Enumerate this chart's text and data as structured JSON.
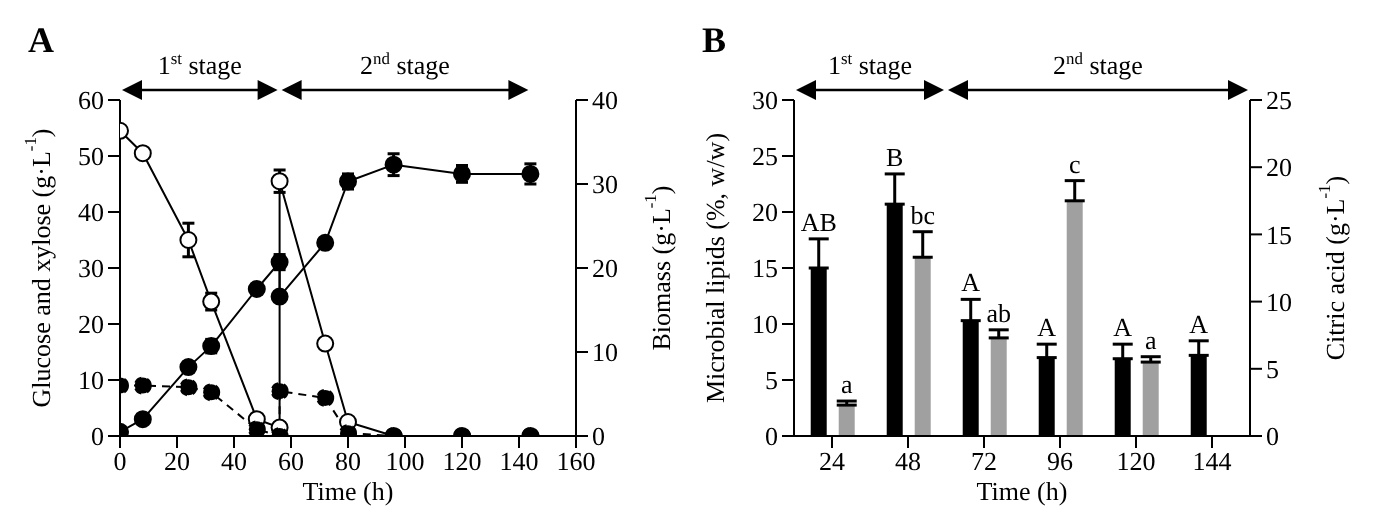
{
  "chart_data": [
    {
      "type": "line",
      "title": "A",
      "xlabel": "Time (h)",
      "ylabel": "Glucose and xylose (g·L$^{-1}$)",
      "y2label": "Biomass (g·L$^{-1}$)",
      "xlim": [
        0,
        160
      ],
      "xticks": [
        0,
        20,
        40,
        60,
        80,
        100,
        120,
        140,
        160
      ],
      "ylim": [
        0,
        60
      ],
      "yticks": [
        0,
        10,
        20,
        30,
        40,
        50,
        60
      ],
      "y2lim": [
        0,
        40
      ],
      "y2ticks": [
        0,
        10,
        20,
        30,
        40
      ],
      "marker": "circle",
      "legend": false,
      "annotations": [
        "1$^{st}$ stage",
        "2$^{nd}$ stage"
      ],
      "series": [
        {
          "color": "#ffffff",
          "line_style": "solid",
          "x": [
            0,
            8,
            24,
            32,
            48,
            56,
            56,
            72,
            80,
            96,
            120,
            144
          ],
          "values": [
            54.5,
            50.5,
            35,
            24,
            3,
            1.5,
            45.5,
            16.5,
            2.5,
            0,
            0,
            0
          ],
          "errors": [
            null,
            null,
            3,
            1.5,
            null,
            null,
            2,
            null,
            null,
            null,
            null,
            null
          ]
        },
        {
          "color": "#000000",
          "line_style": "dashed",
          "x": [
            0,
            8,
            24,
            32,
            48,
            56,
            56,
            72,
            80,
            96,
            120,
            144
          ],
          "values": [
            9,
            9,
            8.7,
            7.8,
            1.2,
            0,
            8,
            6.8,
            0.5,
            0,
            0,
            0
          ]
        },
        {
          "color": "#000000",
          "line_style": "solid",
          "axis": "y2",
          "x": [
            0,
            8,
            24,
            32,
            48,
            56,
            56,
            72,
            80,
            96,
            120,
            144
          ],
          "values": [
            0.5,
            2,
            8.2,
            10.7,
            17.5,
            20.7,
            16.6,
            23,
            30.3,
            32.3,
            31.2,
            31.2
          ],
          "errors": [
            null,
            null,
            0.6,
            0.8,
            0.6,
            0.9,
            null,
            null,
            0.9,
            1.3,
            1.0,
            1.2
          ]
        }
      ]
    },
    {
      "type": "bar",
      "title": "B",
      "xlabel": "Time (h)",
      "ylabel": "Microbial lipids (%, w/w)",
      "y2label": "Citric acid (g·L$^{-1}$)",
      "categories": [
        "24",
        "48",
        "72",
        "96",
        "120",
        "144"
      ],
      "ylim": [
        0,
        30
      ],
      "yticks": [
        0,
        5,
        10,
        15,
        20,
        25,
        30
      ],
      "y2lim": [
        0,
        25
      ],
      "y2ticks": [
        0,
        5,
        10,
        15,
        20,
        25
      ],
      "legend": false,
      "annotations": [
        "1$^{st}$ stage",
        "2$^{nd}$ stage"
      ],
      "series": [
        {
          "color": "#000000",
          "values": [
            15,
            20.7,
            10.3,
            7,
            6.9,
            7.2
          ],
          "errors": [
            [
              15,
              17.6
            ],
            [
              20.7,
              23.4
            ],
            [
              10.3,
              12.2
            ],
            [
              7,
              8.2
            ],
            [
              6.9,
              8.2
            ],
            [
              7.2,
              8.5
            ]
          ],
          "value_labels": [
            "AB",
            "B",
            "A",
            "A",
            "A",
            "A"
          ]
        },
        {
          "color": "#a0a0a0",
          "axis": "y2",
          "values": [
            2.3,
            13.3,
            7.3,
            17.5,
            5.5,
            null
          ],
          "errors": [
            [
              2.3,
              2.6
            ],
            [
              13.3,
              15.2
            ],
            [
              7.3,
              7.9
            ],
            [
              17.5,
              19
            ],
            [
              5.5,
              5.9
            ],
            null
          ],
          "value_labels": [
            "a",
            "bc",
            "ab",
            "c",
            "a",
            null
          ]
        }
      ]
    }
  ]
}
